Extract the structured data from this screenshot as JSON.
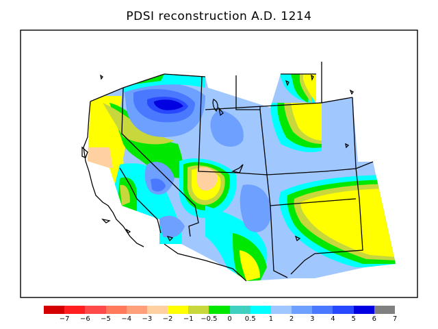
{
  "title": "PDSI reconstruction A.D. 1214",
  "legend": {
    "colors": [
      "#d40000",
      "#ff1f1f",
      "#ff4a4a",
      "#ff7a5a",
      "#ffa07a",
      "#ffd0a0",
      "#ffff00",
      "#c8d83c",
      "#00e800",
      "#40d0c0",
      "#00ffff",
      "#a0c8ff",
      "#6ea0ff",
      "#4a78ff",
      "#2848ff",
      "#0000e0",
      "#808080"
    ],
    "labels": [
      "−7",
      "−6",
      "−5",
      "−4",
      "−3",
      "−2",
      "−1",
      "−0.5",
      "0",
      "0.5",
      "1",
      "2",
      "3",
      "4",
      "5",
      "6",
      "7"
    ]
  }
}
